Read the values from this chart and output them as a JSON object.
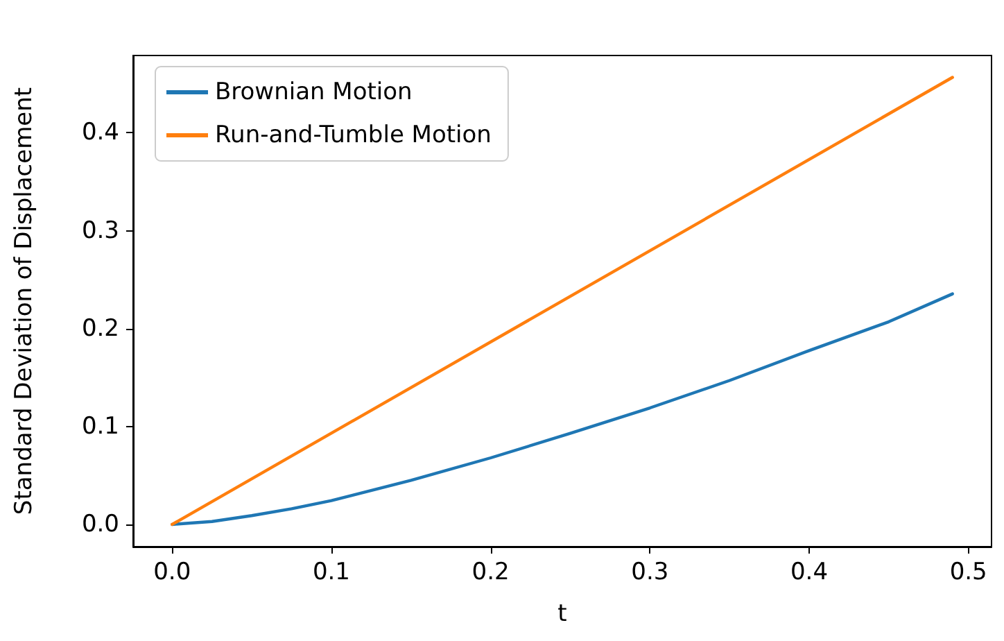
{
  "chart_data": {
    "type": "line",
    "xlabel": "t",
    "ylabel": "Standard Deviation of Displacement",
    "xlim": [
      -0.0245,
      0.5145
    ],
    "xticks": [
      {
        "value": 0,
        "label": "0.0"
      },
      0.1,
      0.2,
      0.3,
      0.4,
      0.5
    ],
    "ylim": [
      -0.0227,
      0.479
    ],
    "yticks": [
      {
        "value": 0,
        "label": "0.0"
      },
      0.1,
      0.2,
      0.3,
      0.4
    ],
    "grid": false,
    "legend": "top left",
    "marker": "none",
    "line_style": "solid",
    "series": [
      {
        "name": "Brownian Motion",
        "color": "#1f77b4",
        "x": [
          0,
          0.025,
          0.05,
          0.075,
          0.1,
          0.15,
          0.2,
          0.25,
          0.3,
          0.35,
          0.4,
          0.45,
          0.49
        ],
        "values": [
          0,
          0.003,
          0.009,
          0.016,
          0.0244,
          0.045,
          0.068,
          0.093,
          0.119,
          0.147,
          0.1776,
          0.207,
          0.2355
        ]
      },
      {
        "name": "Run-and-Tumble Motion",
        "color": "#ff7f0e",
        "x": [
          0,
          0.49
        ],
        "values": [
          0,
          0.4567
        ]
      }
    ]
  }
}
